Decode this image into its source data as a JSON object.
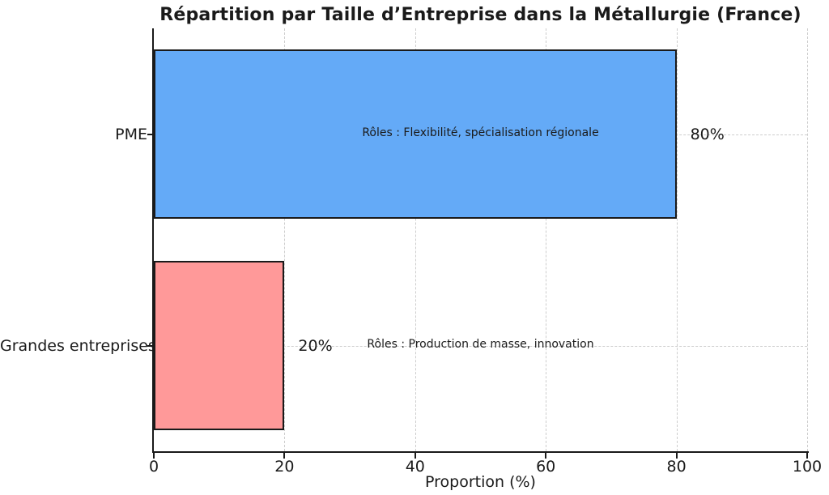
{
  "chart_data": {
    "type": "bar",
    "orientation": "horizontal",
    "title": "Répartition par Taille d’Entreprise dans la Métallurgie (France)",
    "categories": [
      "PME",
      "Grandes entreprises"
    ],
    "values": [
      80,
      20
    ],
    "value_labels": [
      "80%",
      "20%"
    ],
    "annotations": [
      {
        "text": "Rôles : Flexibilité, spécialisation régionale",
        "x": 50,
        "category_index": 0
      },
      {
        "text": "Rôles : Production de masse, innovation",
        "x": 50,
        "category_index": 1
      }
    ],
    "xlabel": "Proportion (%)",
    "ylabel": "",
    "xlim": [
      0,
      100
    ],
    "xticks": [
      0,
      20,
      40,
      60,
      80,
      100
    ],
    "grid": true,
    "grid_style": "dashed",
    "legend": "none",
    "colors": {
      "bars": [
        "#64aaf7",
        "#ff9999"
      ],
      "bar_edge": "#1a1a1a",
      "grid": "#cdcdcd",
      "axis": "#1a1a1a",
      "text": "#1a1a1a",
      "background": "#ffffff"
    }
  }
}
